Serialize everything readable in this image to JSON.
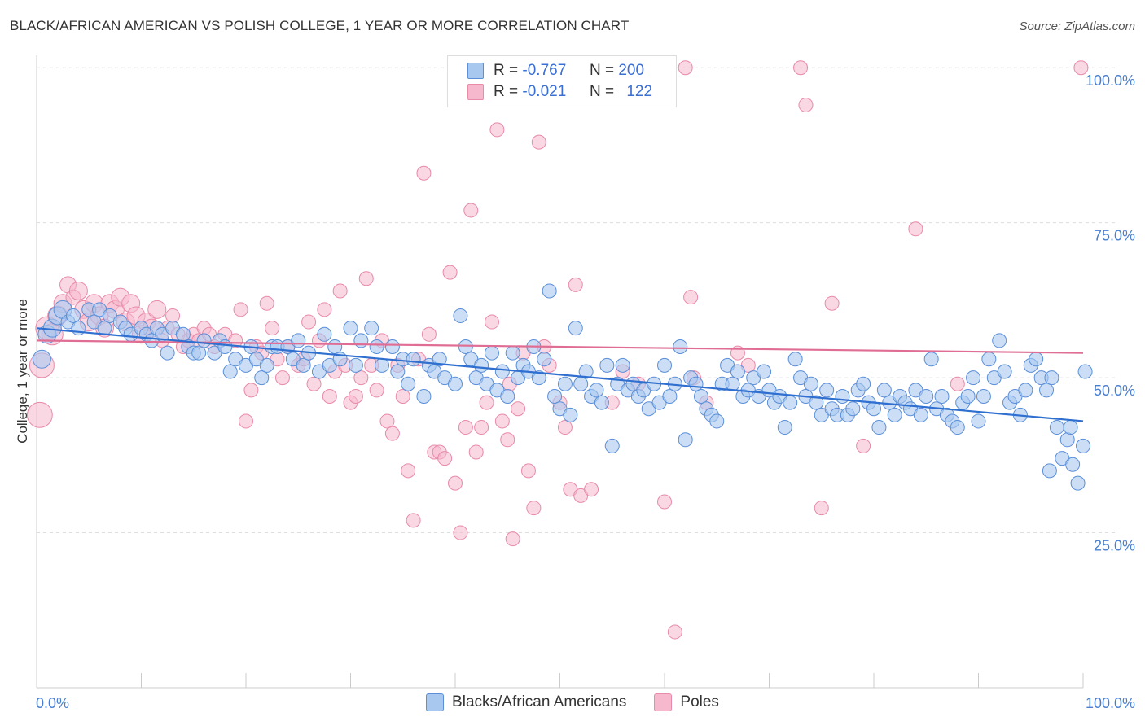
{
  "header": {
    "title": "BLACK/AFRICAN AMERICAN VS POLISH COLLEGE, 1 YEAR OR MORE CORRELATION CHART",
    "source": "Source: ZipAtlas.com"
  },
  "legend": {
    "rows": [
      {
        "r_label": "R =",
        "r_value": "-0.767",
        "n_label": "N =",
        "n_value": "200"
      },
      {
        "r_label": "R =",
        "r_value": "-0.021",
        "n_label": "N =",
        "n_value": "122"
      }
    ]
  },
  "bottom_legend": [
    "Blacks/African Americans",
    "Poles"
  ],
  "colors": {
    "blue_fill": "#a8c8f0",
    "blue_stroke": "#5b8fd8",
    "blue_line": "#2f6fd0",
    "pink_fill": "#f5b8cc",
    "pink_stroke": "#e88aa8",
    "pink_line": "#e06d94",
    "tick_text": "#4a7fd0",
    "grid": "#dddddd"
  },
  "chart_data": {
    "type": "scatter",
    "title": "BLACK/AFRICAN AMERICAN VS POLISH COLLEGE, 1 YEAR OR MORE CORRELATION CHART",
    "xlabel": "",
    "ylabel": "College, 1 year or more",
    "xlim": [
      0,
      100
    ],
    "ylim": [
      0,
      102
    ],
    "x_tick_labels": [
      "0.0%",
      "100.0%"
    ],
    "y_ticks": [
      25,
      50,
      75,
      100
    ],
    "y_tick_labels": [
      "25.0%",
      "50.0%",
      "75.0%",
      "100.0%"
    ],
    "grid": true,
    "legend_position": "top-center",
    "series": [
      {
        "name": "Blacks/African Americans",
        "r": -0.767,
        "n": 200,
        "trend": {
          "x": [
            0,
            100
          ],
          "y": [
            58.0,
            43.0
          ]
        },
        "points": [
          [
            0.5,
            53
          ],
          [
            1,
            57
          ],
          [
            1.5,
            58
          ],
          [
            2,
            60
          ],
          [
            2.5,
            61
          ],
          [
            3,
            59
          ],
          [
            3.5,
            60
          ],
          [
            4,
            58
          ],
          [
            5,
            61
          ],
          [
            5.5,
            59
          ],
          [
            6,
            61
          ],
          [
            6.5,
            58
          ],
          [
            7,
            60
          ],
          [
            8,
            59
          ],
          [
            8.5,
            58
          ],
          [
            9,
            57
          ],
          [
            10,
            58
          ],
          [
            10.5,
            57
          ],
          [
            11,
            56
          ],
          [
            11.5,
            58
          ],
          [
            12,
            57
          ],
          [
            12.5,
            54
          ],
          [
            13,
            58
          ],
          [
            14,
            57
          ],
          [
            14.5,
            55
          ],
          [
            15,
            54
          ],
          [
            15.5,
            54
          ],
          [
            16,
            56
          ],
          [
            17,
            54
          ],
          [
            17.5,
            56
          ],
          [
            18,
            55
          ],
          [
            18.5,
            51
          ],
          [
            19,
            53
          ],
          [
            20,
            52
          ],
          [
            20.5,
            55
          ],
          [
            21,
            53
          ],
          [
            21.5,
            50
          ],
          [
            22,
            52
          ],
          [
            22.5,
            55
          ],
          [
            23,
            55
          ],
          [
            24,
            55
          ],
          [
            24.5,
            53
          ],
          [
            25,
            56
          ],
          [
            25.5,
            52
          ],
          [
            26,
            54
          ],
          [
            27,
            51
          ],
          [
            27.5,
            57
          ],
          [
            28,
            52
          ],
          [
            28.5,
            55
          ],
          [
            29,
            53
          ],
          [
            30,
            58
          ],
          [
            30.5,
            52
          ],
          [
            31,
            56
          ],
          [
            32,
            58
          ],
          [
            32.5,
            55
          ],
          [
            33,
            52
          ],
          [
            34,
            55
          ],
          [
            34.5,
            51
          ],
          [
            35,
            53
          ],
          [
            35.5,
            49
          ],
          [
            36,
            53
          ],
          [
            37,
            47
          ],
          [
            37.5,
            52
          ],
          [
            38,
            51
          ],
          [
            38.5,
            53
          ],
          [
            39,
            50
          ],
          [
            40,
            49
          ],
          [
            40.5,
            60
          ],
          [
            41,
            55
          ],
          [
            41.5,
            53
          ],
          [
            42,
            50
          ],
          [
            42.5,
            52
          ],
          [
            43,
            49
          ],
          [
            43.5,
            54
          ],
          [
            44,
            48
          ],
          [
            44.5,
            51
          ],
          [
            45,
            47
          ],
          [
            45.5,
            54
          ],
          [
            46,
            50
          ],
          [
            46.5,
            52
          ],
          [
            47,
            51
          ],
          [
            47.5,
            55
          ],
          [
            48,
            50
          ],
          [
            48.5,
            53
          ],
          [
            49,
            64
          ],
          [
            49.5,
            47
          ],
          [
            50,
            45
          ],
          [
            50.5,
            49
          ],
          [
            51,
            44
          ],
          [
            51.5,
            58
          ],
          [
            52,
            49
          ],
          [
            52.5,
            51
          ],
          [
            53,
            47
          ],
          [
            53.5,
            48
          ],
          [
            54,
            46
          ],
          [
            54.5,
            52
          ],
          [
            55,
            39
          ],
          [
            55.5,
            49
          ],
          [
            56,
            52
          ],
          [
            56.5,
            48
          ],
          [
            57,
            49
          ],
          [
            57.5,
            47
          ],
          [
            58,
            48
          ],
          [
            58.5,
            45
          ],
          [
            59,
            49
          ],
          [
            59.5,
            46
          ],
          [
            60,
            52
          ],
          [
            60.5,
            47
          ],
          [
            61,
            49
          ],
          [
            61.5,
            55
          ],
          [
            62,
            40
          ],
          [
            62.5,
            50
          ],
          [
            63,
            49
          ],
          [
            63.5,
            47
          ],
          [
            64,
            45
          ],
          [
            64.5,
            44
          ],
          [
            65,
            43
          ],
          [
            65.5,
            49
          ],
          [
            66,
            52
          ],
          [
            66.5,
            49
          ],
          [
            67,
            51
          ],
          [
            67.5,
            47
          ],
          [
            68,
            48
          ],
          [
            68.5,
            50
          ],
          [
            69,
            47
          ],
          [
            69.5,
            51
          ],
          [
            70,
            48
          ],
          [
            70.5,
            46
          ],
          [
            71,
            47
          ],
          [
            71.5,
            42
          ],
          [
            72,
            46
          ],
          [
            72.5,
            53
          ],
          [
            73,
            50
          ],
          [
            73.5,
            47
          ],
          [
            74,
            49
          ],
          [
            74.5,
            46
          ],
          [
            75,
            44
          ],
          [
            75.5,
            48
          ],
          [
            76,
            45
          ],
          [
            76.5,
            44
          ],
          [
            77,
            47
          ],
          [
            77.5,
            44
          ],
          [
            78,
            45
          ],
          [
            78.5,
            48
          ],
          [
            79,
            49
          ],
          [
            79.5,
            46
          ],
          [
            80,
            45
          ],
          [
            80.5,
            42
          ],
          [
            81,
            48
          ],
          [
            81.5,
            46
          ],
          [
            82,
            44
          ],
          [
            82.5,
            47
          ],
          [
            83,
            46
          ],
          [
            83.5,
            45
          ],
          [
            84,
            48
          ],
          [
            84.5,
            44
          ],
          [
            85,
            47
          ],
          [
            85.5,
            53
          ],
          [
            86,
            45
          ],
          [
            86.5,
            47
          ],
          [
            87,
            44
          ],
          [
            87.5,
            43
          ],
          [
            88,
            42
          ],
          [
            88.5,
            46
          ],
          [
            89,
            47
          ],
          [
            89.5,
            50
          ],
          [
            90,
            43
          ],
          [
            90.5,
            47
          ],
          [
            91,
            53
          ],
          [
            91.5,
            50
          ],
          [
            92,
            56
          ],
          [
            92.5,
            51
          ],
          [
            93,
            46
          ],
          [
            93.5,
            47
          ],
          [
            94,
            44
          ],
          [
            94.5,
            48
          ],
          [
            95,
            52
          ],
          [
            95.5,
            53
          ],
          [
            96,
            50
          ],
          [
            96.5,
            48
          ],
          [
            97,
            50
          ],
          [
            97.5,
            42
          ],
          [
            98,
            37
          ],
          [
            98.5,
            40
          ],
          [
            99,
            36
          ],
          [
            99.5,
            33
          ],
          [
            100,
            39
          ],
          [
            100.2,
            51
          ],
          [
            96.8,
            35
          ],
          [
            98.8,
            42
          ]
        ]
      },
      {
        "name": "Poles",
        "r": -0.021,
        "n": 122,
        "trend": {
          "x": [
            0,
            100
          ],
          "y": [
            56.0,
            54.0
          ]
        },
        "points": [
          [
            0.3,
            44
          ],
          [
            0.5,
            52
          ],
          [
            1,
            58
          ],
          [
            1.5,
            57
          ],
          [
            2,
            60
          ],
          [
            2.5,
            62
          ],
          [
            3,
            65
          ],
          [
            3.5,
            63
          ],
          [
            4,
            64
          ],
          [
            4.5,
            61
          ],
          [
            5,
            59
          ],
          [
            5.5,
            62
          ],
          [
            6,
            60
          ],
          [
            6.5,
            58
          ],
          [
            7,
            62
          ],
          [
            7.5,
            61
          ],
          [
            8,
            63
          ],
          [
            8.5,
            59
          ],
          [
            9,
            62
          ],
          [
            9.5,
            60
          ],
          [
            10,
            57
          ],
          [
            10.5,
            59
          ],
          [
            11,
            58
          ],
          [
            11.5,
            61
          ],
          [
            12,
            56
          ],
          [
            12.5,
            58
          ],
          [
            13,
            60
          ],
          [
            13.5,
            57
          ],
          [
            14,
            55
          ],
          [
            14.5,
            56
          ],
          [
            15,
            57
          ],
          [
            15.5,
            56
          ],
          [
            16,
            58
          ],
          [
            16.5,
            57
          ],
          [
            17,
            55
          ],
          [
            18,
            57
          ],
          [
            19,
            56
          ],
          [
            19.5,
            61
          ],
          [
            20,
            43
          ],
          [
            20.5,
            48
          ],
          [
            21,
            55
          ],
          [
            21.5,
            54
          ],
          [
            22,
            62
          ],
          [
            22.5,
            58
          ],
          [
            23,
            53
          ],
          [
            23.5,
            50
          ],
          [
            24,
            55
          ],
          [
            25,
            52
          ],
          [
            25.5,
            53
          ],
          [
            26,
            59
          ],
          [
            26.5,
            49
          ],
          [
            27,
            56
          ],
          [
            27.5,
            61
          ],
          [
            28,
            47
          ],
          [
            28.5,
            51
          ],
          [
            29,
            64
          ],
          [
            29.5,
            52
          ],
          [
            30,
            46
          ],
          [
            30.5,
            47
          ],
          [
            31,
            50
          ],
          [
            31.5,
            66
          ],
          [
            32,
            52
          ],
          [
            32.5,
            48
          ],
          [
            33,
            56
          ],
          [
            33.5,
            43
          ],
          [
            34,
            41
          ],
          [
            34.5,
            52
          ],
          [
            35,
            47
          ],
          [
            35.5,
            35
          ],
          [
            36,
            27
          ],
          [
            36.5,
            53
          ],
          [
            37,
            83
          ],
          [
            37.5,
            57
          ],
          [
            38,
            38
          ],
          [
            38.5,
            38
          ],
          [
            39,
            37
          ],
          [
            39.5,
            67
          ],
          [
            40,
            33
          ],
          [
            40.5,
            25
          ],
          [
            41,
            42
          ],
          [
            41.5,
            77
          ],
          [
            42,
            38
          ],
          [
            42.5,
            42
          ],
          [
            43,
            46
          ],
          [
            43.5,
            59
          ],
          [
            44,
            90
          ],
          [
            44.5,
            43
          ],
          [
            45,
            40
          ],
          [
            45.5,
            24
          ],
          [
            46,
            45
          ],
          [
            46.5,
            54
          ],
          [
            47,
            35
          ],
          [
            47.5,
            29
          ],
          [
            48,
            88
          ],
          [
            48.5,
            55
          ],
          [
            49,
            52
          ],
          [
            50,
            46
          ],
          [
            50.5,
            42
          ],
          [
            51,
            32
          ],
          [
            51.5,
            65
          ],
          [
            52,
            31
          ],
          [
            53,
            32
          ],
          [
            55,
            46
          ],
          [
            60,
            30
          ],
          [
            61,
            9
          ],
          [
            62,
            100
          ],
          [
            62.5,
            63
          ],
          [
            67,
            54
          ],
          [
            68,
            52
          ],
          [
            73,
            100
          ],
          [
            73.5,
            94
          ],
          [
            75,
            29
          ],
          [
            76,
            62
          ],
          [
            79,
            39
          ],
          [
            84,
            74
          ],
          [
            88,
            49
          ],
          [
            64,
            46
          ],
          [
            56,
            51
          ],
          [
            45.2,
            49
          ],
          [
            62.8,
            50
          ],
          [
            57.5,
            49
          ],
          [
            99.8,
            100
          ]
        ]
      }
    ]
  }
}
